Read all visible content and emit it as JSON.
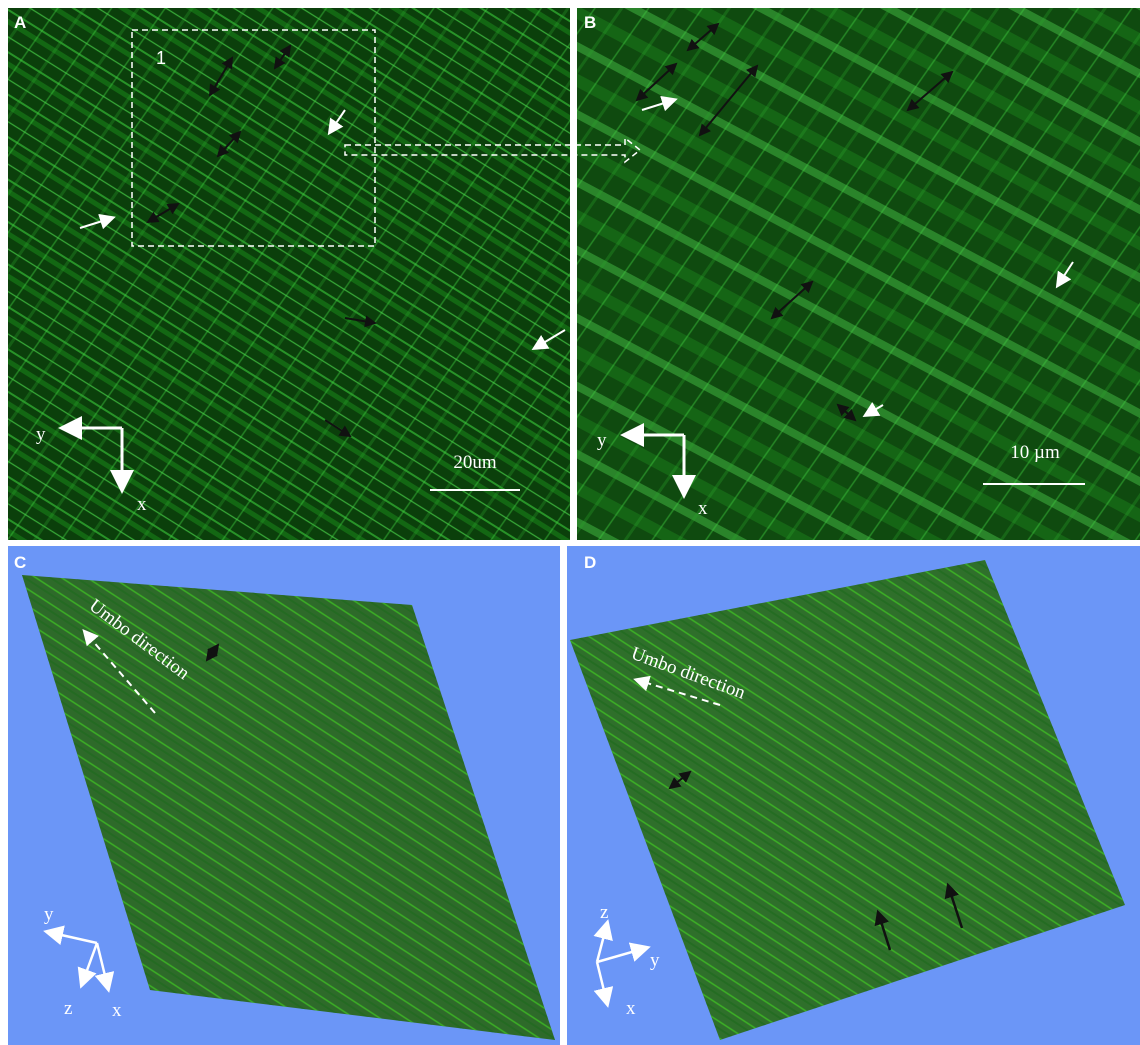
{
  "panels": [
    {
      "label": "A",
      "inset_label": "1",
      "scale_bar": "20um",
      "axes": [
        "y",
        "x"
      ]
    },
    {
      "label": "B",
      "scale_bar": "10 µm",
      "axes": [
        "y",
        "x"
      ]
    },
    {
      "label": "C",
      "annotation": "Umbo direction",
      "axes": [
        "y",
        "z",
        "x"
      ]
    },
    {
      "label": "D",
      "annotation": "Umbo direction",
      "axes": [
        "z",
        "y",
        "x"
      ]
    }
  ]
}
